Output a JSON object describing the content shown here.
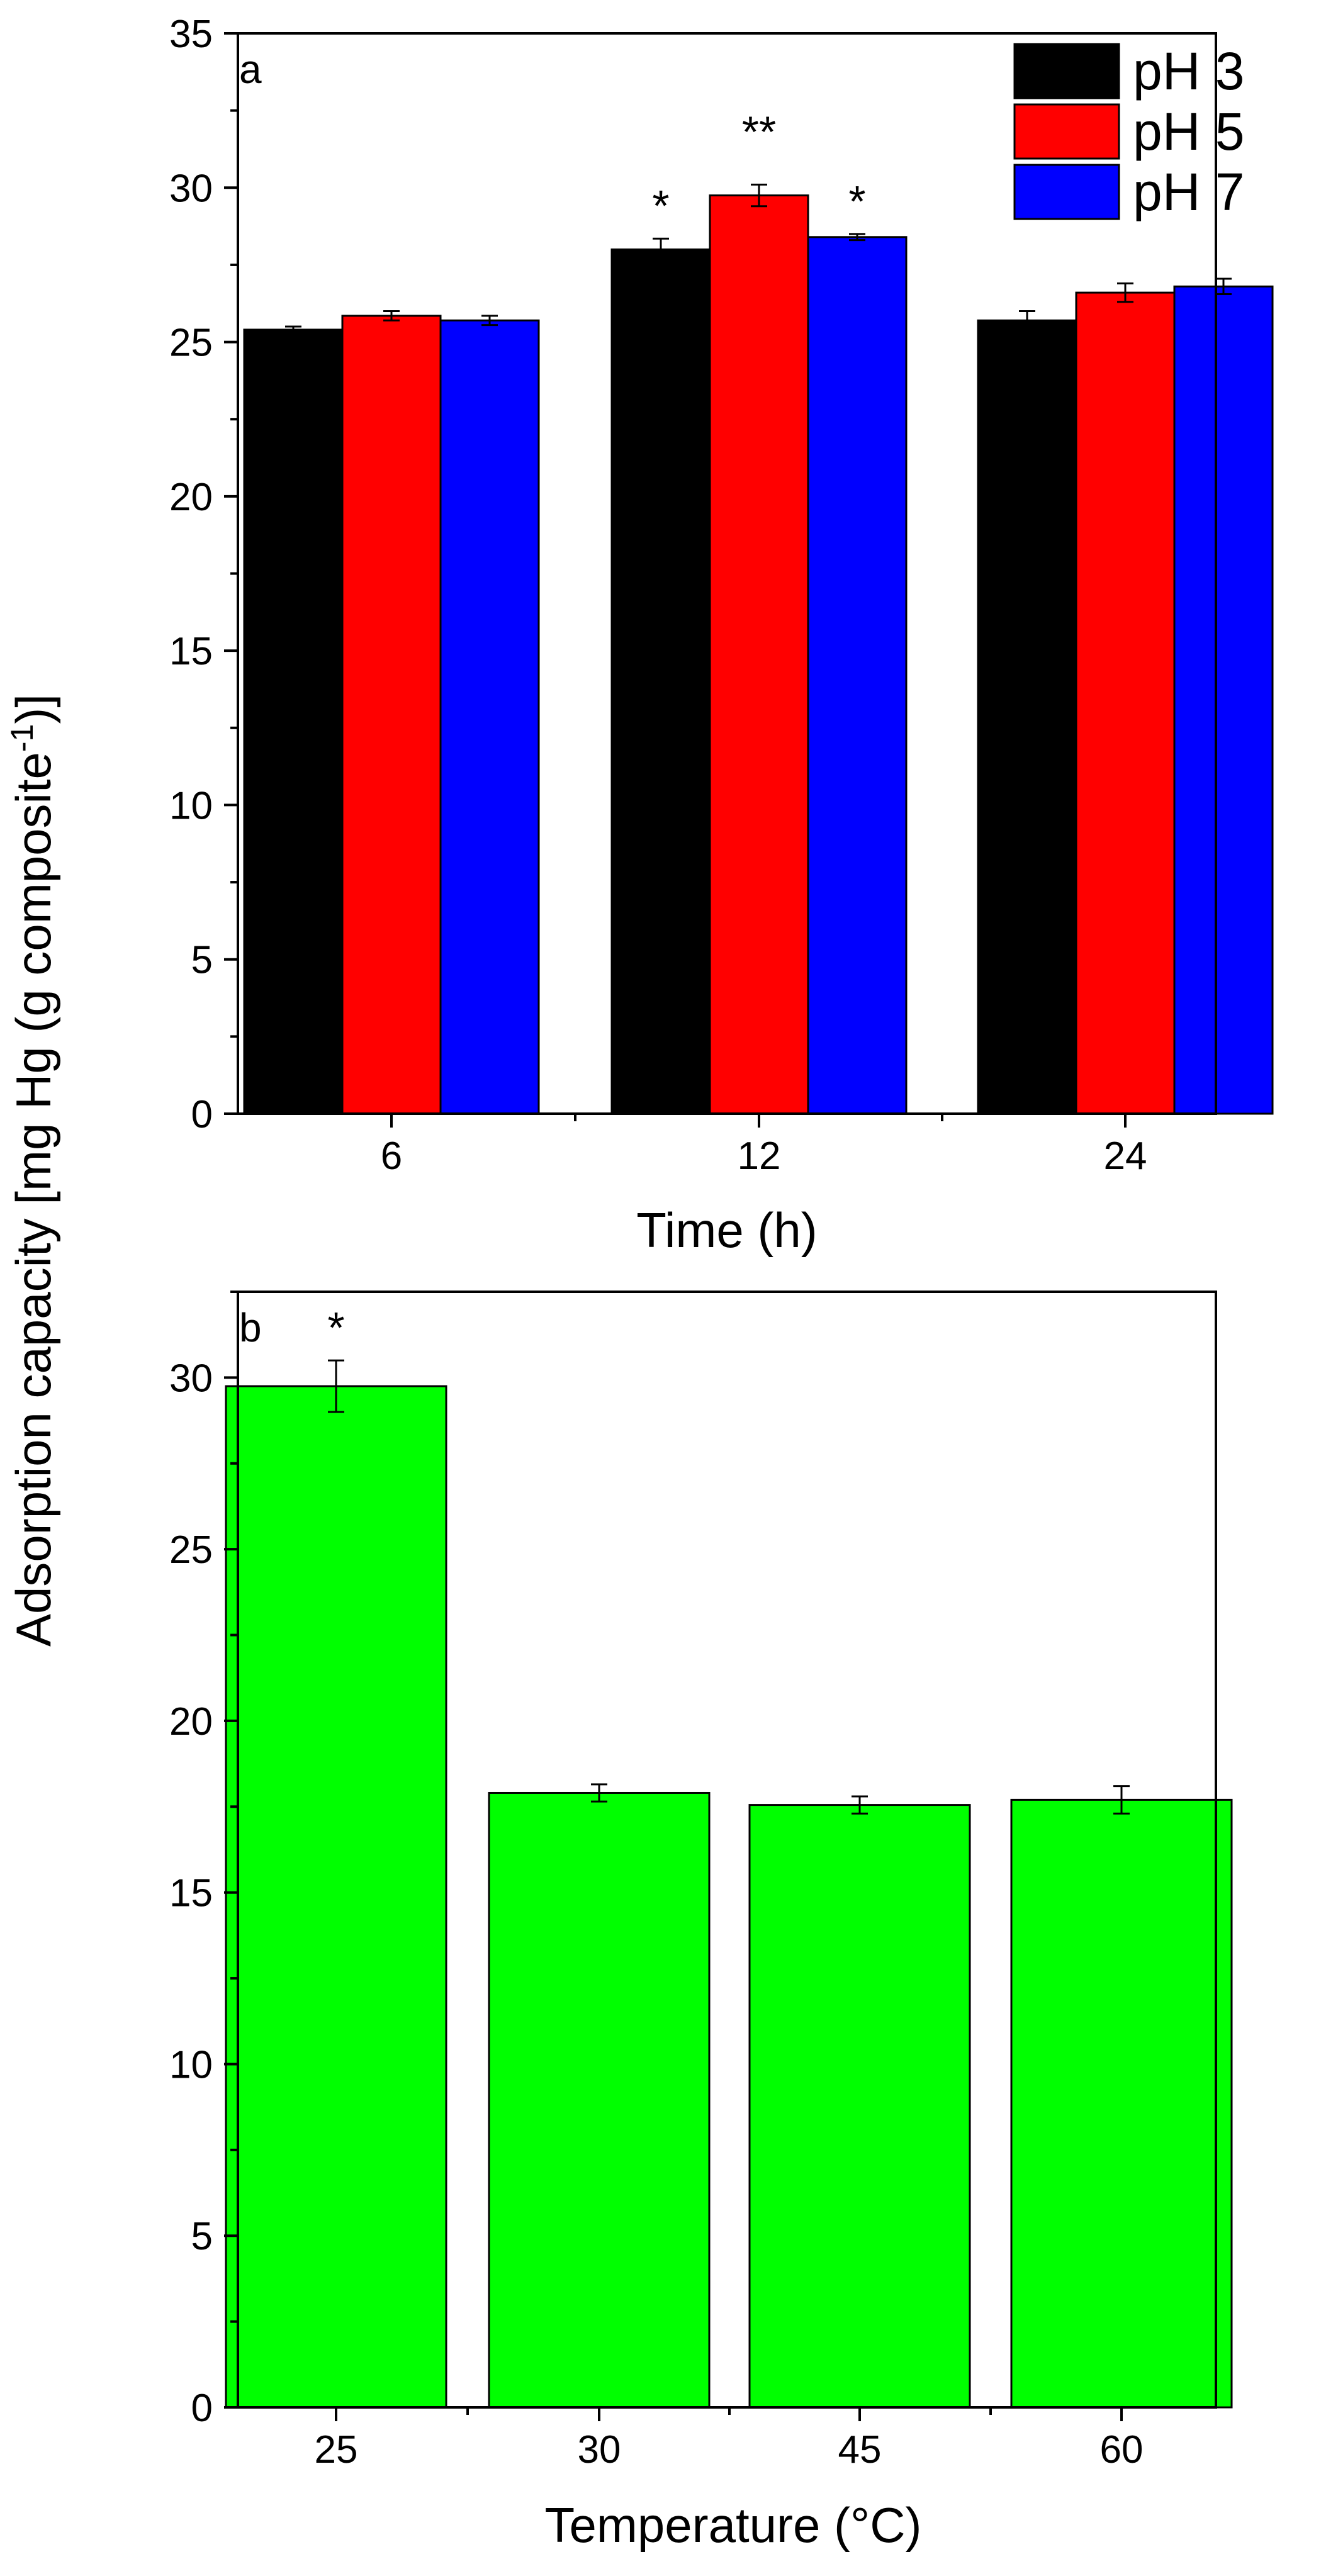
{
  "figure": {
    "shared_ylabel_main": "Adsorption capacity [mg Hg (g composite",
    "shared_ylabel_sup": "-1",
    "shared_ylabel_close": ")]"
  },
  "chart_data": [
    {
      "panel": "a",
      "type": "bar",
      "xlabel": "Time (h)",
      "ylabel": "Adsorption capacity [mg Hg (g composite-1)]",
      "ylim": [
        0,
        35
      ],
      "yticks": [
        0,
        5,
        10,
        15,
        20,
        25,
        30,
        35
      ],
      "categories": [
        "6",
        "12",
        "24"
      ],
      "legend_position": "top-right",
      "series": [
        {
          "name": "pH 3",
          "color": "#000000",
          "values": [
            25.4,
            28.0,
            25.7
          ],
          "errors": [
            0.1,
            0.35,
            0.3
          ],
          "annotations": [
            "",
            "*",
            ""
          ]
        },
        {
          "name": "pH 5",
          "color": "#ff0000",
          "values": [
            25.85,
            29.75,
            26.6
          ],
          "errors": [
            0.15,
            0.35,
            0.3
          ],
          "annotations": [
            "",
            "**",
            ""
          ]
        },
        {
          "name": "pH 7",
          "color": "#0000ff",
          "values": [
            25.7,
            28.4,
            26.8
          ],
          "errors": [
            0.15,
            0.1,
            0.25
          ],
          "annotations": [
            "",
            "*",
            ""
          ]
        }
      ]
    },
    {
      "panel": "b",
      "type": "bar",
      "xlabel": "Temperature (°C)",
      "ylabel": "Adsorption capacity [mg Hg (g composite-1)]",
      "ylim": [
        0,
        32.5
      ],
      "yticks": [
        0,
        5,
        10,
        15,
        20,
        25,
        30
      ],
      "categories": [
        "25",
        "30",
        "45",
        "60"
      ],
      "series": [
        {
          "name": "Adsorption capacity",
          "color": "#00ff00",
          "values": [
            29.75,
            17.9,
            17.55,
            17.7
          ],
          "errors": [
            0.75,
            0.25,
            0.25,
            0.4
          ],
          "annotations": [
            "*",
            "",
            "",
            ""
          ]
        }
      ]
    }
  ]
}
